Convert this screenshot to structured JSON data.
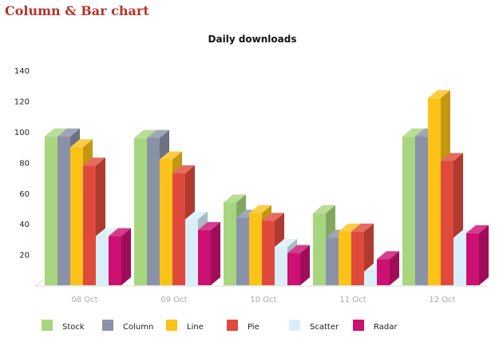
{
  "page": {
    "title": "Column & Bar chart"
  },
  "chart_data": {
    "type": "bar",
    "title": "Daily downloads",
    "xlabel": "",
    "ylabel": "",
    "ylim": [
      0,
      140
    ],
    "yticks": [
      20,
      40,
      60,
      80,
      100,
      120,
      140
    ],
    "categories": [
      "08 Oct",
      "09 Oct",
      "10 Oct",
      "11 Oct",
      "12 Oct"
    ],
    "series": [
      {
        "name": "Stock",
        "color": "#a8d67e",
        "values": [
          97,
          96,
          54,
          47,
          97
        ]
      },
      {
        "name": "Column",
        "color": "#8a92a8",
        "values": [
          97,
          96,
          44,
          31,
          97
        ]
      },
      {
        "name": "Line",
        "color": "#fbc218",
        "values": [
          90,
          82,
          47,
          35,
          122
        ]
      },
      {
        "name": "Pie",
        "color": "#e04a3c",
        "values": [
          78,
          73,
          42,
          35,
          81
        ]
      },
      {
        "name": "Scatter",
        "color": "#d9eef8",
        "values": [
          32,
          43,
          25,
          9,
          31
        ]
      },
      {
        "name": "Radar",
        "color": "#cc1172",
        "values": [
          32,
          36,
          21,
          17,
          34
        ]
      }
    ],
    "grid": false,
    "legend_position": "bottom",
    "projection": "3d"
  }
}
